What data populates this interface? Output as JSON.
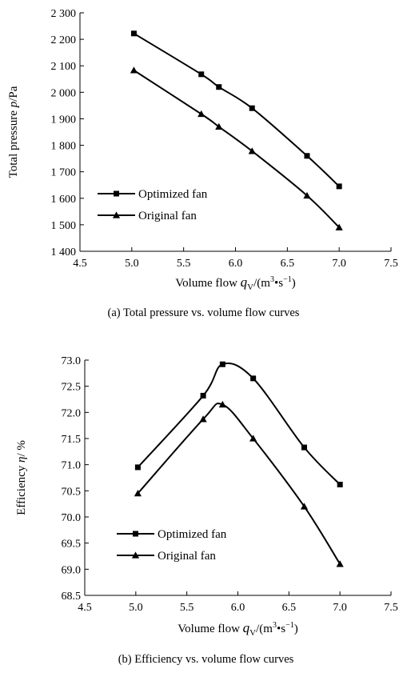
{
  "chart_data": [
    {
      "type": "line",
      "title": "",
      "caption": "(a)  Total pressure vs. volume flow curves",
      "xlabel": {
        "text": "Volume flow ",
        "sym": "q",
        "sub": "V",
        "unit_open": "/(m",
        "sup1": "3",
        "mid": "•s",
        "sup2": "−1",
        "unit_close": ")"
      },
      "ylabel": {
        "text": "Total pressure ",
        "sym": "p",
        "unit": "/Pa"
      },
      "xlim": [
        4.5,
        7.5
      ],
      "ylim": [
        1400,
        2300
      ],
      "xticks": [
        4.5,
        5.0,
        5.5,
        6.0,
        6.5,
        7.0,
        7.5
      ],
      "xtick_labels": [
        "4.5",
        "5.0",
        "5.5",
        "6.0",
        "6.5",
        "7.0",
        "7.5"
      ],
      "yticks": [
        1400,
        1500,
        1600,
        1700,
        1800,
        1900,
        2000,
        2100,
        2200,
        2300
      ],
      "ytick_labels": [
        "1 400",
        "1 500",
        "1 600",
        "1 700",
        "1 800",
        "1 900",
        "2 000",
        "2 100",
        "2 200",
        "2 300"
      ],
      "grid": false,
      "legend_position": "bottom-left",
      "series": [
        {
          "name": "Optimized fan",
          "marker": "square",
          "x": [
            5.02,
            5.67,
            5.84,
            6.16,
            6.69,
            7.0
          ],
          "y": [
            2222,
            2068,
            2020,
            1940,
            1760,
            1645
          ]
        },
        {
          "name": "Original fan",
          "marker": "triangle",
          "x": [
            5.02,
            5.67,
            5.84,
            6.16,
            6.69,
            7.0
          ],
          "y": [
            2083,
            1918,
            1870,
            1778,
            1610,
            1490
          ]
        }
      ]
    },
    {
      "type": "line",
      "title": "",
      "caption": "(b)  Efficiency vs. volume  flow curves",
      "xlabel": {
        "text": "Volume flow ",
        "sym": "q",
        "sub": "V",
        "unit_open": "/(m",
        "sup1": "3",
        "mid": "•s",
        "sup2": "−1",
        "unit_close": ")"
      },
      "ylabel": {
        "text": "Efficiency ",
        "sym": "η",
        "unit": "/ %"
      },
      "xlim": [
        4.5,
        7.5
      ],
      "ylim": [
        68.5,
        73.0
      ],
      "xticks": [
        4.5,
        5.0,
        5.5,
        6.0,
        6.5,
        7.0,
        7.5
      ],
      "xtick_labels": [
        "4.5",
        "5.0",
        "5.5",
        "6.0",
        "6.5",
        "7.0",
        "7.5"
      ],
      "yticks": [
        68.5,
        69.0,
        69.5,
        70.0,
        70.5,
        71.0,
        71.5,
        72.0,
        72.5,
        73.0
      ],
      "ytick_labels": [
        "68.5",
        "69.0",
        "69.5",
        "70.0",
        "70.5",
        "71.0",
        "71.5",
        "72.0",
        "72.5",
        "73.0"
      ],
      "grid": false,
      "legend_position": "bottom-left",
      "series": [
        {
          "name": "Optimized fan",
          "marker": "square",
          "x": [
            5.02,
            5.66,
            5.85,
            6.15,
            6.65,
            7.0
          ],
          "y": [
            70.95,
            72.32,
            72.92,
            72.65,
            71.33,
            70.62
          ]
        },
        {
          "name": "Original fan",
          "marker": "triangle",
          "x": [
            5.02,
            5.66,
            5.85,
            6.15,
            6.65,
            7.0
          ],
          "y": [
            70.45,
            71.87,
            72.15,
            71.5,
            70.2,
            69.1
          ]
        }
      ]
    }
  ]
}
